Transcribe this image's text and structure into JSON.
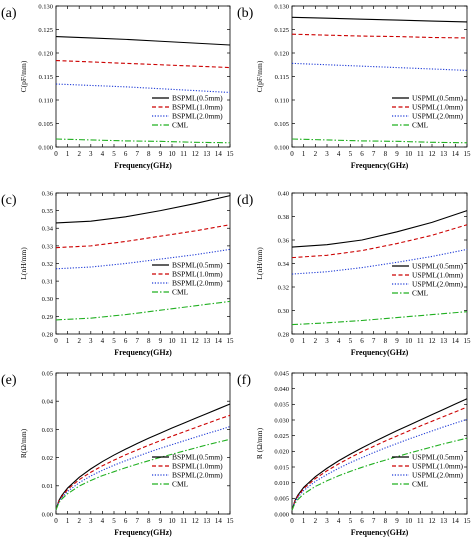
{
  "chart_data": [
    {
      "panel_label": "(a)",
      "type": "line",
      "xlabel": "Frequency(GHz)",
      "ylabel": "C(pF/mm)",
      "xlim": [
        0,
        15
      ],
      "ylim": [
        0.1,
        0.13
      ],
      "xticks": [
        0,
        1,
        2,
        3,
        4,
        5,
        6,
        7,
        8,
        9,
        10,
        11,
        12,
        13,
        14,
        15
      ],
      "xtick_labels": [
        "0",
        "1",
        "2",
        "3",
        "4",
        "5",
        "6",
        "7",
        "8",
        "9",
        "10",
        "11",
        "12",
        "13",
        "14",
        "15"
      ],
      "yticks": [
        0.1,
        0.105,
        0.11,
        0.115,
        0.12,
        0.125,
        0.13
      ],
      "ytick_labels": [
        "0.100",
        "0.105",
        "0.110",
        "0.115",
        "0.120",
        "0.125",
        "0.130"
      ],
      "legend_position": "right",
      "series": [
        {
          "name": "BSPML(0.5mm)",
          "color": "#000000",
          "dash": "solid",
          "x": [
            0,
            3,
            6,
            9,
            12,
            15
          ],
          "y": [
            0.1235,
            0.1232,
            0.1229,
            0.1225,
            0.1221,
            0.1217
          ]
        },
        {
          "name": "BSPML(1.0mm)",
          "color": "#cc0000",
          "dash": "dashed",
          "x": [
            0,
            3,
            6,
            9,
            12,
            15
          ],
          "y": [
            0.1184,
            0.1181,
            0.1178,
            0.1175,
            0.1172,
            0.1169
          ]
        },
        {
          "name": "BSPML(2.0mm)",
          "color": "#1f3bd6",
          "dash": "dotted",
          "x": [
            0,
            3,
            6,
            9,
            12,
            15
          ],
          "y": [
            0.1134,
            0.1131,
            0.1128,
            0.1124,
            0.112,
            0.1116
          ]
        },
        {
          "name": "CML",
          "color": "#22b022",
          "dash": "dashdot",
          "x": [
            0,
            3,
            6,
            9,
            12,
            15
          ],
          "y": [
            0.1017,
            0.1015,
            0.1013,
            0.1012,
            0.101,
            0.1009
          ]
        }
      ]
    },
    {
      "panel_label": "(b)",
      "type": "line",
      "xlabel": "Frequency(GHz)",
      "ylabel": "C(pF/mm)",
      "xlim": [
        0,
        15
      ],
      "ylim": [
        0.1,
        0.13
      ],
      "xticks": [
        0,
        1,
        2,
        3,
        4,
        5,
        6,
        7,
        8,
        9,
        10,
        11,
        12,
        13,
        14,
        15
      ],
      "xtick_labels": [
        "0",
        "1",
        "2",
        "3",
        "4",
        "5",
        "6",
        "7",
        "8",
        "9",
        "10",
        "11",
        "12",
        "13",
        "14",
        "15"
      ],
      "yticks": [
        0.1,
        0.105,
        0.11,
        0.115,
        0.12,
        0.125,
        0.13
      ],
      "ytick_labels": [
        "0.100",
        "0.105",
        "0.110",
        "0.115",
        "0.120",
        "0.125",
        "0.130"
      ],
      "legend_position": "right",
      "series": [
        {
          "name": "USPML(0.5mm)",
          "color": "#000000",
          "dash": "solid",
          "x": [
            0,
            3,
            6,
            9,
            12,
            15
          ],
          "y": [
            0.1276,
            0.1274,
            0.1272,
            0.127,
            0.1268,
            0.1266
          ]
        },
        {
          "name": "USPML(1.0mm)",
          "color": "#cc0000",
          "dash": "dashed",
          "x": [
            0,
            3,
            6,
            9,
            12,
            15
          ],
          "y": [
            0.124,
            0.1238,
            0.1236,
            0.1235,
            0.1233,
            0.1232
          ]
        },
        {
          "name": "USPML(2.0mm)",
          "color": "#1f3bd6",
          "dash": "dotted",
          "x": [
            0,
            3,
            6,
            9,
            12,
            15
          ],
          "y": [
            0.1178,
            0.1175,
            0.1172,
            0.1169,
            0.1166,
            0.1163
          ]
        },
        {
          "name": "CML",
          "color": "#22b022",
          "dash": "dashdot",
          "x": [
            0,
            3,
            6,
            9,
            12,
            15
          ],
          "y": [
            0.1017,
            0.1015,
            0.1013,
            0.1012,
            0.101,
            0.1009
          ]
        }
      ]
    },
    {
      "panel_label": "(c)",
      "type": "line",
      "xlabel": "Frequency(GHz)",
      "ylabel": "L(nH/mm)",
      "xlim": [
        0,
        15
      ],
      "ylim": [
        0.28,
        0.36
      ],
      "xticks": [
        0,
        1,
        2,
        3,
        4,
        5,
        6,
        7,
        8,
        9,
        10,
        11,
        12,
        13,
        14,
        15
      ],
      "xtick_labels": [
        "0",
        "1",
        "2",
        "3",
        "4",
        "5",
        "6",
        "7",
        "8",
        "9",
        "10",
        "11",
        "12",
        "13",
        "14",
        "15"
      ],
      "yticks": [
        0.28,
        0.29,
        0.3,
        0.31,
        0.32,
        0.33,
        0.34,
        0.35,
        0.36
      ],
      "ytick_labels": [
        "0.28",
        "0.29",
        "0.30",
        "0.31",
        "0.32",
        "0.33",
        "0.34",
        "0.35",
        "0.36"
      ],
      "legend_position": "bottom-right",
      "series": [
        {
          "name": "BSPML(0.5mm)",
          "color": "#000000",
          "dash": "solid",
          "x": [
            0,
            3,
            6,
            9,
            12,
            15
          ],
          "y": [
            0.343,
            0.344,
            0.3465,
            0.35,
            0.354,
            0.3585
          ]
        },
        {
          "name": "BSPML(1.0mm)",
          "color": "#cc0000",
          "dash": "dashed",
          "x": [
            0,
            3,
            6,
            9,
            12,
            15
          ],
          "y": [
            0.329,
            0.33,
            0.3325,
            0.3355,
            0.3385,
            0.342
          ]
        },
        {
          "name": "BSPML(2.0mm)",
          "color": "#1f3bd6",
          "dash": "dotted",
          "x": [
            0,
            3,
            6,
            9,
            12,
            15
          ],
          "y": [
            0.317,
            0.318,
            0.32,
            0.3225,
            0.325,
            0.328
          ]
        },
        {
          "name": "CML",
          "color": "#22b022",
          "dash": "dashdot",
          "x": [
            0,
            3,
            6,
            9,
            12,
            15
          ],
          "y": [
            0.288,
            0.289,
            0.291,
            0.2935,
            0.296,
            0.2985
          ]
        }
      ]
    },
    {
      "panel_label": "(d)",
      "type": "line",
      "xlabel": "Frequency(GHz)",
      "ylabel": "L(nH/mm)",
      "xlim": [
        0,
        15
      ],
      "ylim": [
        0.28,
        0.4
      ],
      "xticks": [
        0,
        1,
        2,
        3,
        4,
        5,
        6,
        7,
        8,
        9,
        10,
        11,
        12,
        13,
        14,
        15
      ],
      "xtick_labels": [
        "0",
        "1",
        "2",
        "3",
        "4",
        "5",
        "6",
        "7",
        "8",
        "9",
        "10",
        "11",
        "12",
        "13",
        "14",
        "15"
      ],
      "yticks": [
        0.28,
        0.3,
        0.32,
        0.34,
        0.36,
        0.38,
        0.4
      ],
      "ytick_labels": [
        "0.28",
        "0.30",
        "0.32",
        "0.34",
        "0.36",
        "0.38",
        "0.40"
      ],
      "legend_position": "bottom-right",
      "series": [
        {
          "name": "USPML(0.5mm)",
          "color": "#000000",
          "dash": "solid",
          "x": [
            0,
            3,
            6,
            9,
            12,
            15
          ],
          "y": [
            0.354,
            0.356,
            0.36,
            0.367,
            0.375,
            0.385
          ]
        },
        {
          "name": "USPML(1.0mm)",
          "color": "#cc0000",
          "dash": "dashed",
          "x": [
            0,
            3,
            6,
            9,
            12,
            15
          ],
          "y": [
            0.345,
            0.347,
            0.351,
            0.357,
            0.364,
            0.373
          ]
        },
        {
          "name": "USPML(2.0mm)",
          "color": "#1f3bd6",
          "dash": "dotted",
          "x": [
            0,
            3,
            6,
            9,
            12,
            15
          ],
          "y": [
            0.331,
            0.333,
            0.3365,
            0.341,
            0.346,
            0.352
          ]
        },
        {
          "name": "CML",
          "color": "#22b022",
          "dash": "dashdot",
          "x": [
            0,
            3,
            6,
            9,
            12,
            15
          ],
          "y": [
            0.288,
            0.2895,
            0.2915,
            0.294,
            0.2965,
            0.299
          ]
        }
      ]
    },
    {
      "panel_label": "(e)",
      "type": "line",
      "xlabel": "Frequency(GHz)",
      "ylabel": "R(Ω/mm)",
      "xlim": [
        0,
        15
      ],
      "ylim": [
        0,
        0.05
      ],
      "xticks": [
        0,
        1,
        2,
        3,
        4,
        5,
        6,
        7,
        8,
        9,
        10,
        11,
        12,
        13,
        14,
        15
      ],
      "xtick_labels": [
        "0",
        "1",
        "2",
        "3",
        "4",
        "5",
        "6",
        "7",
        "8",
        "9",
        "10",
        "11",
        "12",
        "13",
        "14",
        "15"
      ],
      "yticks": [
        0,
        0.01,
        0.02,
        0.03,
        0.04,
        0.05
      ],
      "ytick_labels": [
        "0.00",
        "0.01",
        "0.02",
        "0.03",
        "0.04",
        "0.05"
      ],
      "legend_position": "bottom-right",
      "series": [
        {
          "name": "BSPML(0.5mm)",
          "color": "#000000",
          "dash": "solid",
          "x": [
            0,
            0.25,
            0.5,
            1,
            2,
            3,
            4,
            5,
            6,
            7,
            8,
            9,
            10,
            11,
            12,
            13,
            14,
            15
          ],
          "y": [
            0.0015,
            0.0048,
            0.0066,
            0.0092,
            0.013,
            0.016,
            0.0186,
            0.0209,
            0.023,
            0.025,
            0.0269,
            0.0287,
            0.0305,
            0.0322,
            0.0339,
            0.0356,
            0.0373,
            0.039
          ]
        },
        {
          "name": "BSPML(1.0mm)",
          "color": "#cc0000",
          "dash": "dashed",
          "x": [
            0,
            0.25,
            0.5,
            1,
            2,
            3,
            4,
            5,
            6,
            7,
            8,
            9,
            10,
            11,
            12,
            13,
            14,
            15
          ],
          "y": [
            0.0015,
            0.0046,
            0.0062,
            0.0087,
            0.0122,
            0.0148,
            0.0171,
            0.0191,
            0.021,
            0.0227,
            0.0244,
            0.026,
            0.0276,
            0.0291,
            0.0306,
            0.0321,
            0.0336,
            0.035
          ]
        },
        {
          "name": "BSPML(2.0mm)",
          "color": "#1f3bd6",
          "dash": "dotted",
          "x": [
            0,
            0.25,
            0.5,
            1,
            2,
            3,
            4,
            5,
            6,
            7,
            8,
            9,
            10,
            11,
            12,
            13,
            14,
            15
          ],
          "y": [
            0.0015,
            0.0043,
            0.0058,
            0.008,
            0.0111,
            0.0135,
            0.0155,
            0.0173,
            0.0189,
            0.0204,
            0.0219,
            0.0233,
            0.0246,
            0.0259,
            0.0272,
            0.0285,
            0.0297,
            0.031
          ]
        },
        {
          "name": "CML",
          "color": "#22b022",
          "dash": "dashdot",
          "x": [
            0,
            0.25,
            0.5,
            1,
            2,
            3,
            4,
            5,
            6,
            7,
            8,
            9,
            10,
            11,
            12,
            13,
            14,
            15
          ],
          "y": [
            0.0015,
            0.004,
            0.0053,
            0.0072,
            0.0099,
            0.0119,
            0.0136,
            0.015,
            0.0164,
            0.0177,
            0.0189,
            0.0201,
            0.0212,
            0.0223,
            0.0234,
            0.0245,
            0.0255,
            0.0265
          ]
        }
      ]
    },
    {
      "panel_label": "(f)",
      "type": "line",
      "xlabel": "Frequency(GHz)",
      "ylabel": "R (Ω/mm)",
      "xlim": [
        0,
        15
      ],
      "ylim": [
        0,
        0.045
      ],
      "xticks": [
        0,
        1,
        2,
        3,
        4,
        5,
        6,
        7,
        8,
        9,
        10,
        11,
        12,
        13,
        14,
        15
      ],
      "xtick_labels": [
        "0",
        "1",
        "2",
        "3",
        "4",
        "5",
        "6",
        "7",
        "8",
        "9",
        "10",
        "11",
        "12",
        "13",
        "14",
        "15"
      ],
      "yticks": [
        0,
        0.005,
        0.01,
        0.015,
        0.02,
        0.025,
        0.03,
        0.035,
        0.04,
        0.045
      ],
      "ytick_labels": [
        "0.000",
        "0.005",
        "0.010",
        "0.015",
        "0.020",
        "0.025",
        "0.030",
        "0.035",
        "0.040",
        "0.045"
      ],
      "legend_position": "bottom-right",
      "series": [
        {
          "name": "USPML(0.5mm)",
          "color": "#000000",
          "dash": "solid",
          "x": [
            0,
            0.25,
            0.5,
            1,
            2,
            3,
            4,
            5,
            6,
            7,
            8,
            9,
            10,
            11,
            12,
            13,
            14,
            15
          ],
          "y": [
            0.0012,
            0.0043,
            0.006,
            0.0085,
            0.0119,
            0.0146,
            0.017,
            0.0191,
            0.0211,
            0.023,
            0.0248,
            0.0266,
            0.0283,
            0.03,
            0.0317,
            0.0334,
            0.0351,
            0.0368
          ]
        },
        {
          "name": "USPML(1.0mm)",
          "color": "#cc0000",
          "dash": "dashed",
          "x": [
            0,
            0.25,
            0.5,
            1,
            2,
            3,
            4,
            5,
            6,
            7,
            8,
            9,
            10,
            11,
            12,
            13,
            14,
            15
          ],
          "y": [
            0.0012,
            0.0041,
            0.0057,
            0.0081,
            0.0113,
            0.0138,
            0.016,
            0.018,
            0.0199,
            0.0216,
            0.0233,
            0.0249,
            0.0265,
            0.0281,
            0.0296,
            0.0311,
            0.0326,
            0.0341
          ]
        },
        {
          "name": "USPML(2.0mm)",
          "color": "#1f3bd6",
          "dash": "dotted",
          "x": [
            0,
            0.25,
            0.5,
            1,
            2,
            3,
            4,
            5,
            6,
            7,
            8,
            9,
            10,
            11,
            12,
            13,
            14,
            15
          ],
          "y": [
            0.0012,
            0.0038,
            0.0053,
            0.0075,
            0.0104,
            0.0126,
            0.0146,
            0.0164,
            0.018,
            0.0196,
            0.0211,
            0.0225,
            0.0239,
            0.0252,
            0.0265,
            0.0278,
            0.029,
            0.0302
          ]
        },
        {
          "name": "CML",
          "color": "#22b022",
          "dash": "dashdot",
          "x": [
            0,
            0.25,
            0.5,
            1,
            2,
            3,
            4,
            5,
            6,
            7,
            8,
            9,
            10,
            11,
            12,
            13,
            14,
            15
          ],
          "y": [
            0.0012,
            0.0034,
            0.0046,
            0.0064,
            0.0088,
            0.0106,
            0.0122,
            0.0136,
            0.0149,
            0.0161,
            0.0172,
            0.0183,
            0.0194,
            0.0204,
            0.0214,
            0.0224,
            0.0233,
            0.0242
          ]
        }
      ]
    }
  ]
}
